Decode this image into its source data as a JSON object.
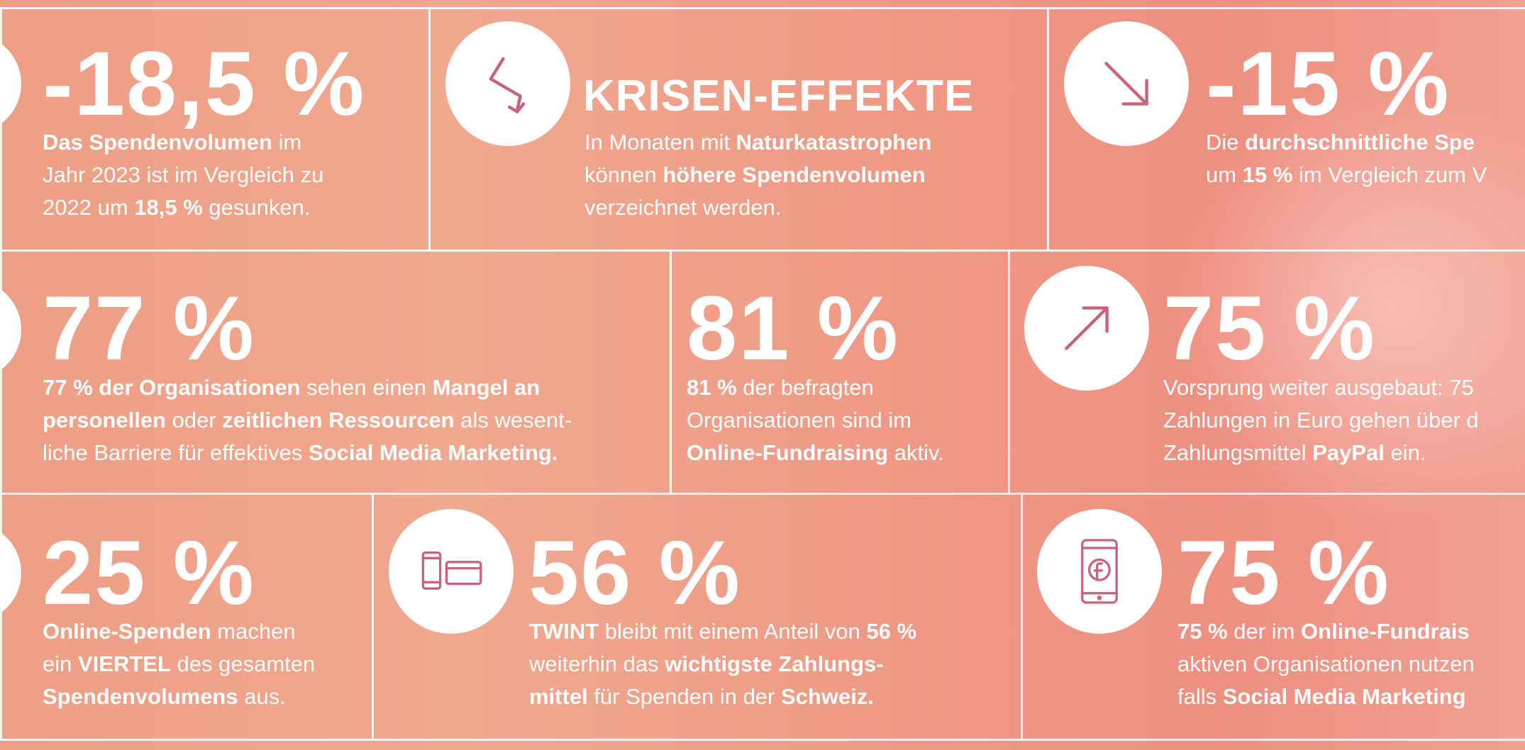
{
  "colors": {
    "background": "#ef9f88",
    "line": "#ffffff",
    "icon_stroke": "#c9627a",
    "text": "#ffffff"
  },
  "tiles": [
    {
      "id": "decline-2023",
      "icon": "partial-circle-icon",
      "value": "-18,5 %",
      "lines": [
        [
          {
            "t": "Das Spendenvolumen",
            "b": true
          },
          {
            "t": " im",
            "b": false
          }
        ],
        [
          {
            "t": "Jahr 2023 ist im Vergleich zu",
            "b": false
          }
        ],
        [
          {
            "t": "2022 um ",
            "b": false
          },
          {
            "t": "18,5 %",
            "b": true
          },
          {
            "t": " gesunken.",
            "b": false
          }
        ]
      ]
    },
    {
      "id": "krisen-effekte",
      "icon": "zigzag-arrow-down-icon",
      "value": "KRISEN-EFFEKTE",
      "lines": [
        [
          {
            "t": "In Monaten mit ",
            "b": false
          },
          {
            "t": "Naturkatastrophen",
            "b": true
          }
        ],
        [
          {
            "t": "können ",
            "b": false
          },
          {
            "t": "höhere Spendenvolumen",
            "b": true
          }
        ],
        [
          {
            "t": "verzeichnet werden.",
            "b": false
          }
        ]
      ]
    },
    {
      "id": "average-donation",
      "icon": "arrow-down-right-icon",
      "value": "-15 %",
      "lines": [
        [
          {
            "t": "Die ",
            "b": false
          },
          {
            "t": "durchschnittliche Spe",
            "b": true
          }
        ],
        [
          {
            "t": "um ",
            "b": false
          },
          {
            "t": "15 %",
            "b": true
          },
          {
            "t": " im Vergleich zum V",
            "b": false
          }
        ]
      ]
    },
    {
      "id": "social-media-barrier",
      "icon": "partial-circle-icon",
      "value": "77 %",
      "lines": [
        [
          {
            "t": "77 % der Organisationen",
            "b": true
          },
          {
            "t": " sehen einen ",
            "b": false
          },
          {
            "t": "Mangel an",
            "b": true
          }
        ],
        [
          {
            "t": "personellen",
            "b": true
          },
          {
            "t": " oder ",
            "b": false
          },
          {
            "t": "zeitlichen Ressourcen",
            "b": true
          },
          {
            "t": " als wesent-",
            "b": false
          }
        ],
        [
          {
            "t": "liche Barriere für effektives ",
            "b": false
          },
          {
            "t": "Social Media Marketing.",
            "b": true
          }
        ]
      ]
    },
    {
      "id": "online-fundraising",
      "icon": "",
      "value": "81 %",
      "lines": [
        [
          {
            "t": "81 %",
            "b": true
          },
          {
            "t": " der befragten",
            "b": false
          }
        ],
        [
          {
            "t": "Organisationen sind im",
            "b": false
          }
        ],
        [
          {
            "t": "Online-Fundraising",
            "b": true
          },
          {
            "t": " aktiv.",
            "b": false
          }
        ]
      ]
    },
    {
      "id": "paypal",
      "icon": "arrow-up-right-icon",
      "value": "75 %",
      "lines": [
        [
          {
            "t": "Vorsprung weiter ausgebaut: 75",
            "b": false
          }
        ],
        [
          {
            "t": "Zahlungen in Euro gehen über d",
            "b": false
          }
        ],
        [
          {
            "t": "Zahlungsmittel ",
            "b": false
          },
          {
            "t": "PayPal",
            "b": true
          },
          {
            "t": " ein.",
            "b": false
          }
        ]
      ]
    },
    {
      "id": "online-share",
      "icon": "partial-circle-icon",
      "value": "25 %",
      "lines": [
        [
          {
            "t": "Online-Spenden",
            "b": true
          },
          {
            "t": " machen",
            "b": false
          }
        ],
        [
          {
            "t": "ein ",
            "b": false
          },
          {
            "t": "VIERTEL",
            "b": true
          },
          {
            "t": " des gesamten",
            "b": false
          }
        ],
        [
          {
            "t": "Spendenvolumens",
            "b": true
          },
          {
            "t": " aus.",
            "b": false
          }
        ]
      ]
    },
    {
      "id": "twint",
      "icon": "phone-and-card-icon",
      "value": "56 %",
      "lines": [
        [
          {
            "t": "TWINT",
            "b": true
          },
          {
            "t": " bleibt mit einem Anteil von ",
            "b": false
          },
          {
            "t": "56 %",
            "b": true
          }
        ],
        [
          {
            "t": "weiterhin das ",
            "b": false
          },
          {
            "t": "wichtigste Zahlungs-",
            "b": true
          }
        ],
        [
          {
            "t": "mittel",
            "b": true
          },
          {
            "t": " für Spenden in der ",
            "b": false
          },
          {
            "t": "Schweiz.",
            "b": true
          }
        ]
      ]
    },
    {
      "id": "social-media-marketing",
      "icon": "phone-facebook-icon",
      "value": "75 %",
      "lines": [
        [
          {
            "t": "75 %",
            "b": true
          },
          {
            "t": " der im ",
            "b": false
          },
          {
            "t": "Online-Fundrais",
            "b": true
          }
        ],
        [
          {
            "t": "aktiven Organisationen nutzen",
            "b": false
          }
        ],
        [
          {
            "t": "falls ",
            "b": false
          },
          {
            "t": "Social Media Marketing",
            "b": true
          }
        ]
      ]
    }
  ]
}
